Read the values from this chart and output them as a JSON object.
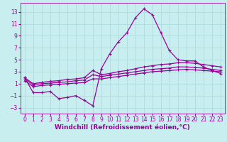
{
  "xlabel": "Windchill (Refroidissement éolien,°C)",
  "ylabel": "",
  "background_color": "#c8eef0",
  "grid_color": "#aadddf",
  "line_color": "#9b009b",
  "xlim": [
    -0.5,
    23.5
  ],
  "ylim": [
    -4,
    14.5
  ],
  "yticks": [
    -3,
    -1,
    1,
    3,
    5,
    7,
    9,
    11,
    13
  ],
  "xticks": [
    0,
    1,
    2,
    3,
    4,
    5,
    6,
    7,
    8,
    9,
    10,
    11,
    12,
    13,
    14,
    15,
    16,
    17,
    18,
    19,
    20,
    21,
    22,
    23
  ],
  "lines": [
    {
      "x": [
        0,
        1,
        2,
        3,
        4,
        5,
        6,
        7,
        8,
        9,
        10,
        11,
        12,
        13,
        14,
        15,
        16,
        17,
        18,
        19,
        20,
        21,
        22,
        23
      ],
      "y": [
        2.0,
        -0.5,
        -0.5,
        -0.3,
        -1.5,
        -1.3,
        -1.0,
        -1.8,
        -2.7,
        3.5,
        6.0,
        8.0,
        9.5,
        12.0,
        13.5,
        12.5,
        9.5,
        6.5,
        5.0,
        4.8,
        4.8,
        3.8,
        3.2,
        2.7
      ]
    },
    {
      "x": [
        0,
        1,
        2,
        3,
        4,
        5,
        6,
        7,
        8,
        9,
        10,
        11,
        12,
        13,
        14,
        15,
        16,
        17,
        18,
        19,
        20,
        21,
        22,
        23
      ],
      "y": [
        2.0,
        1.0,
        1.2,
        1.4,
        1.5,
        1.7,
        1.8,
        2.0,
        3.2,
        2.5,
        2.7,
        3.0,
        3.2,
        3.5,
        3.8,
        4.0,
        4.2,
        4.3,
        4.5,
        4.5,
        4.4,
        4.2,
        4.0,
        3.8
      ]
    },
    {
      "x": [
        0,
        1,
        2,
        3,
        4,
        5,
        6,
        7,
        8,
        9,
        10,
        11,
        12,
        13,
        14,
        15,
        16,
        17,
        18,
        19,
        20,
        21,
        22,
        23
      ],
      "y": [
        1.8,
        0.8,
        1.0,
        1.1,
        1.2,
        1.3,
        1.5,
        1.6,
        2.5,
        2.2,
        2.4,
        2.6,
        2.8,
        3.0,
        3.2,
        3.4,
        3.5,
        3.6,
        3.8,
        3.8,
        3.7,
        3.6,
        3.4,
        3.2
      ]
    },
    {
      "x": [
        0,
        1,
        2,
        3,
        4,
        5,
        6,
        7,
        8,
        9,
        10,
        11,
        12,
        13,
        14,
        15,
        16,
        17,
        18,
        19,
        20,
        21,
        22,
        23
      ],
      "y": [
        1.5,
        0.5,
        0.7,
        0.8,
        0.9,
        1.0,
        1.1,
        1.2,
        1.8,
        1.8,
        2.0,
        2.2,
        2.4,
        2.6,
        2.8,
        3.0,
        3.1,
        3.2,
        3.3,
        3.4,
        3.3,
        3.2,
        3.1,
        3.0
      ]
    }
  ],
  "marker": "+",
  "markersize": 3,
  "linewidth": 0.9,
  "tick_fontsize": 5.5,
  "label_fontsize": 6.5
}
